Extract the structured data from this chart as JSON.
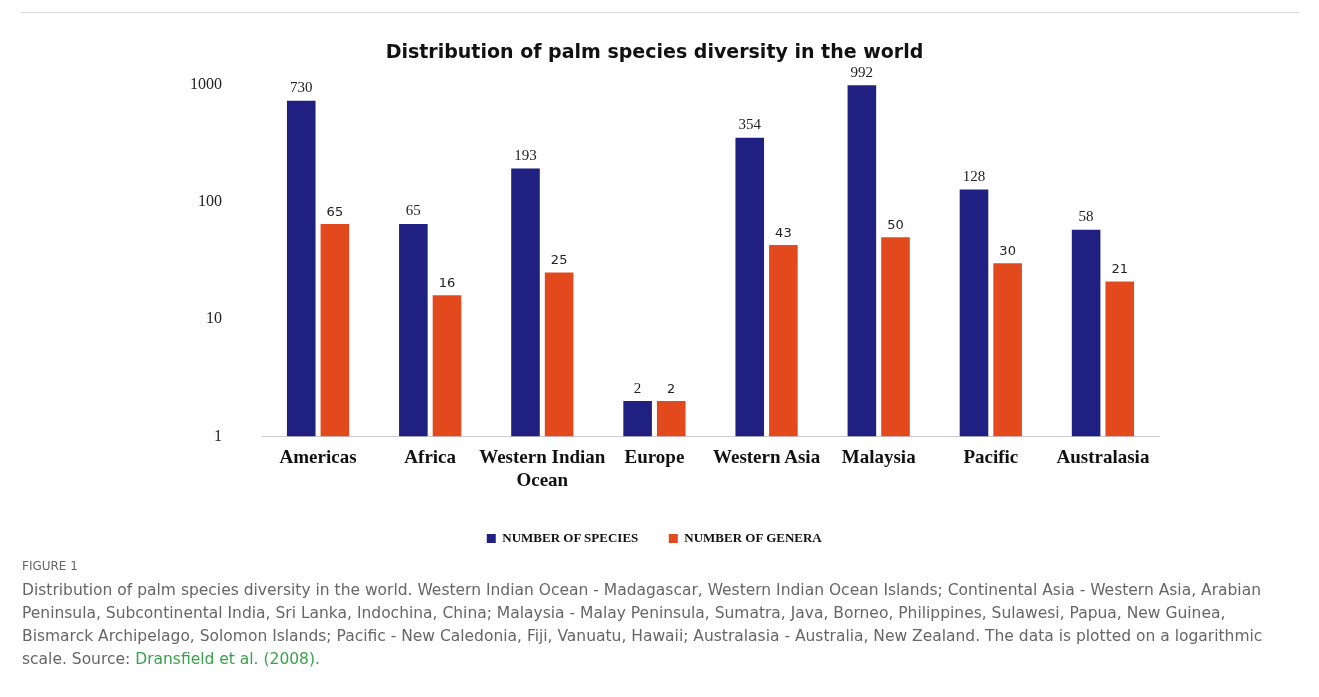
{
  "chart_data": {
    "type": "bar",
    "title": "Distribution of palm species diversity in the world",
    "categories": [
      "Americas",
      "Africa",
      "Western Indian Ocean",
      "Europe",
      "Western Asia",
      "Malaysia",
      "Pacific",
      "Australasia"
    ],
    "series": [
      {
        "name": "NUMBER OF SPECIES",
        "color": "#1f2081",
        "values": [
          730,
          65,
          193,
          2,
          354,
          992,
          128,
          58
        ]
      },
      {
        "name": "NUMBER OF GENERA",
        "color": "#e2491c",
        "values": [
          65,
          16,
          25,
          2,
          43,
          50,
          30,
          21
        ]
      }
    ],
    "log": true,
    "ylim": [
      1,
      1000
    ],
    "yticks": [
      1,
      10,
      100,
      1000
    ],
    "grid": false,
    "legend": "bottom",
    "data_labels": true,
    "annotations": [
      "FIGURE 1",
      "Distribution of palm species diversity in the world. Western Indian Ocean - Madagascar, Western Indian Ocean Islands; Continental Asia - Western Asia, Arabian Peninsula, Subcontinental India, Sri Lanka, Indochina, China; Malaysia - Malay Peninsula, Sumatra, Java, Borneo, Philippines, Sulawesi, Papua, New Guinea, Bismarck Archipelago, Solomon Islands; Pacific - New Caledonia, Fiji, Vanuatu, Hawaii; Australasia - Australia, New Zealand. The data is plotted on a logarithmic scale. Source:",
      "Dransfield et al. (2008)."
    ]
  }
}
